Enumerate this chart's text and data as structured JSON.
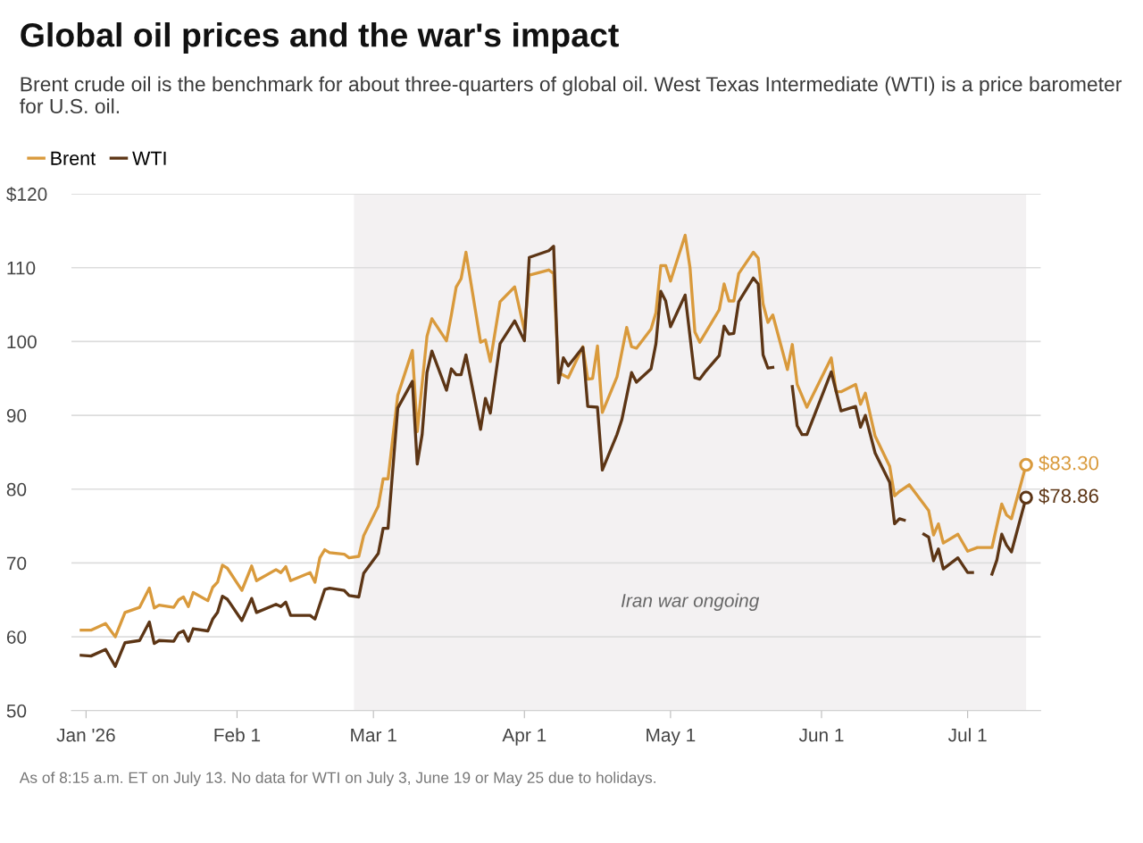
{
  "chart_data": {
    "type": "line",
    "title": "Global oil prices and the war's impact",
    "subtitle": "Brent crude oil is the benchmark for about three-quarters of global oil. West Texas Intermediate (WTI) is a price barometer for U.S. oil.",
    "annotations": [
      "As of 8:15 a.m. ET on July 13. No data for WTI on July 3, June 19 or May 25 due to holidays."
    ],
    "series": [
      {
        "name": "Brent",
        "color": "#d99a3c",
        "x": [
          "2025-12-31",
          "2026-01-02",
          "2026-01-05",
          "2026-01-07",
          "2026-01-09",
          "2026-01-12",
          "2026-01-14",
          "2026-01-15",
          "2026-01-16",
          "2026-01-19",
          "2026-01-20",
          "2026-01-21",
          "2026-01-22",
          "2026-01-23",
          "2026-01-26",
          "2026-01-27",
          "2026-01-28",
          "2026-01-29",
          "2026-01-30",
          "2026-02-02",
          "2026-02-04",
          "2026-02-05",
          "2026-02-09",
          "2026-02-10",
          "2026-02-11",
          "2026-02-12",
          "2026-02-16",
          "2026-02-17",
          "2026-02-18",
          "2026-02-19",
          "2026-02-20",
          "2026-02-23",
          "2026-02-24",
          "2026-02-26",
          "2026-02-27",
          "2026-03-02",
          "2026-03-03",
          "2026-03-04",
          "2026-03-06",
          "2026-03-09",
          "2026-03-10",
          "2026-03-12",
          "2026-03-13",
          "2026-03-16",
          "2026-03-17",
          "2026-03-18",
          "2026-03-19",
          "2026-03-20",
          "2026-03-23",
          "2026-03-24",
          "2026-03-25",
          "2026-03-27",
          "2026-03-30",
          "2026-04-01",
          "2026-04-02",
          "2026-04-06",
          "2026-04-07",
          "2026-04-08",
          "2026-04-10",
          "2026-04-13",
          "2026-04-14",
          "2026-04-15",
          "2026-04-16",
          "2026-04-17",
          "2026-04-20",
          "2026-04-22",
          "2026-04-23",
          "2026-04-24",
          "2026-04-27",
          "2026-04-28",
          "2026-04-29",
          "2026-04-30",
          "2026-05-01",
          "2026-05-04",
          "2026-05-05",
          "2026-05-06",
          "2026-05-07",
          "2026-05-11",
          "2026-05-12",
          "2026-05-13",
          "2026-05-14",
          "2026-05-15",
          "2026-05-18",
          "2026-05-19",
          "2026-05-20",
          "2026-05-21",
          "2026-05-22",
          "2026-05-25",
          "2026-05-26",
          "2026-05-27",
          "2026-05-29",
          "2026-06-03",
          "2026-06-04",
          "2026-06-05",
          "2026-06-08",
          "2026-06-09",
          "2026-06-10",
          "2026-06-12",
          "2026-06-15",
          "2026-06-16",
          "2026-06-17",
          "2026-06-19",
          "2026-06-23",
          "2026-06-24",
          "2026-06-25",
          "2026-06-26",
          "2026-06-29",
          "2026-07-01",
          "2026-07-03",
          "2026-07-06",
          "2026-07-08",
          "2026-07-09",
          "2026-07-10",
          "2026-07-13"
        ],
        "values": [
          60.9,
          60.9,
          61.8,
          60.0,
          63.3,
          64.0,
          66.6,
          63.9,
          64.3,
          64.0,
          65.0,
          65.4,
          64.1,
          66.0,
          64.9,
          66.7,
          67.4,
          69.7,
          69.3,
          66.3,
          69.6,
          67.6,
          69.1,
          68.7,
          69.5,
          67.6,
          68.7,
          67.4,
          70.7,
          71.8,
          71.4,
          71.2,
          70.7,
          70.9,
          73.7,
          77.7,
          81.4,
          81.4,
          92.7,
          98.8,
          87.8,
          100.7,
          103.1,
          100.1,
          103.6,
          107.4,
          108.5,
          112.1,
          99.9,
          100.2,
          97.3,
          105.4,
          107.4,
          101.5,
          109.0,
          109.7,
          109.2,
          95.8,
          95.1,
          99.3,
          94.9,
          95.0,
          99.4,
          90.4,
          95.2,
          101.9,
          99.3,
          99.1,
          101.7,
          103.9,
          110.3,
          110.3,
          108.2,
          114.4,
          110.0,
          101.3,
          99.9,
          104.3,
          107.8,
          105.5,
          105.5,
          109.2,
          112.1,
          111.3,
          105.1,
          102.6,
          103.6,
          96.2,
          99.6,
          94.2,
          91.1,
          97.8,
          93.2,
          93.2,
          94.2,
          91.5,
          93.0,
          87.2,
          83.1,
          79.1,
          79.7,
          80.6,
          77.1,
          73.8,
          75.3,
          72.7,
          73.9,
          71.6,
          72.1,
          72.1,
          78.0,
          76.5,
          76.0,
          83.3
        ],
        "value_labels": [
          null,
          null,
          null,
          null,
          null,
          null,
          null,
          null,
          null,
          null,
          null,
          null,
          null,
          null,
          null,
          null,
          null,
          null,
          null,
          null,
          null,
          null,
          null,
          null,
          null,
          null,
          null,
          null,
          null,
          null,
          null,
          null,
          null,
          null,
          null,
          null,
          null,
          null,
          null,
          null,
          null,
          null,
          null,
          null,
          null,
          null,
          null,
          null,
          null,
          null,
          null,
          null,
          null,
          null,
          null,
          null,
          null,
          null,
          null,
          null,
          null,
          null,
          null,
          null,
          null,
          null,
          null,
          null,
          null,
          null,
          null,
          null,
          null,
          null,
          null,
          null,
          null,
          null,
          null,
          null,
          null,
          null,
          null,
          null,
          null,
          null,
          null,
          null,
          null,
          null,
          null,
          null,
          null,
          null,
          null,
          null,
          null,
          null,
          null,
          null,
          null,
          null,
          null,
          null,
          null,
          null,
          null,
          null,
          null,
          null,
          null,
          null,
          null,
          "$83.30"
        ]
      },
      {
        "name": "WTI",
        "color": "#5c3515",
        "x": [
          "2025-12-31",
          "2026-01-02",
          "2026-01-05",
          "2026-01-07",
          "2026-01-09",
          "2026-01-12",
          "2026-01-14",
          "2026-01-15",
          "2026-01-16",
          "2026-01-19",
          "2026-01-20",
          "2026-01-21",
          "2026-01-22",
          "2026-01-23",
          "2026-01-26",
          "2026-01-27",
          "2026-01-28",
          "2026-01-29",
          "2026-01-30",
          "2026-02-02",
          "2026-02-04",
          "2026-02-05",
          "2026-02-09",
          "2026-02-10",
          "2026-02-11",
          "2026-02-12",
          "2026-02-16",
          "2026-02-17",
          "2026-02-19",
          "2026-02-20",
          "2026-02-23",
          "2026-02-24",
          "2026-02-26",
          "2026-02-27",
          "2026-03-02",
          "2026-03-03",
          "2026-03-04",
          "2026-03-06",
          "2026-03-09",
          "2026-03-10",
          "2026-03-11",
          "2026-03-12",
          "2026-03-13",
          "2026-03-16",
          "2026-03-17",
          "2026-03-18",
          "2026-03-19",
          "2026-03-20",
          "2026-03-23",
          "2026-03-24",
          "2026-03-25",
          "2026-03-27",
          "2026-03-30",
          "2026-04-01",
          "2026-04-02",
          "2026-04-06",
          "2026-04-07",
          "2026-04-08",
          "2026-04-09",
          "2026-04-10",
          "2026-04-13",
          "2026-04-14",
          "2026-04-16",
          "2026-04-17",
          "2026-04-20",
          "2026-04-21",
          "2026-04-23",
          "2026-04-24",
          "2026-04-27",
          "2026-04-28",
          "2026-04-29",
          "2026-04-30",
          "2026-05-01",
          "2026-05-04",
          "2026-05-06",
          "2026-05-07",
          "2026-05-08",
          "2026-05-11",
          "2026-05-12",
          "2026-05-13",
          "2026-05-14",
          "2026-05-15",
          "2026-05-18",
          "2026-05-19",
          "2026-05-20",
          "2026-05-21",
          "2026-05-22",
          "2026-05-25",
          "2026-05-26",
          "2026-05-27",
          "2026-05-28",
          "2026-05-29",
          "2026-06-03",
          "2026-06-05",
          "2026-06-08",
          "2026-06-09",
          "2026-06-10",
          "2026-06-12",
          "2026-06-15",
          "2026-06-16",
          "2026-06-17",
          "2026-06-18",
          "2026-06-19",
          "2026-06-22",
          "2026-06-23",
          "2026-06-24",
          "2026-06-25",
          "2026-06-26",
          "2026-06-29",
          "2026-07-01",
          "2026-07-02",
          "2026-07-03",
          "2026-07-06",
          "2026-07-07",
          "2026-07-08",
          "2026-07-09",
          "2026-07-10",
          "2026-07-13"
        ],
        "values": [
          57.5,
          57.4,
          58.3,
          56.0,
          59.2,
          59.5,
          62.0,
          59.1,
          59.5,
          59.4,
          60.5,
          60.8,
          59.4,
          61.1,
          60.8,
          62.4,
          63.3,
          65.5,
          65.1,
          62.2,
          65.2,
          63.3,
          64.4,
          64.1,
          64.7,
          62.9,
          62.9,
          62.4,
          66.4,
          66.6,
          66.3,
          65.6,
          65.4,
          68.6,
          71.3,
          74.7,
          74.7,
          91.0,
          94.6,
          83.4,
          87.4,
          95.8,
          98.7,
          93.4,
          96.3,
          95.5,
          95.5,
          98.2,
          88.1,
          92.3,
          90.3,
          99.7,
          102.8,
          100.1,
          111.4,
          112.3,
          112.9,
          94.4,
          97.8,
          96.7,
          99.2,
          91.2,
          91.1,
          82.6,
          87.4,
          89.4,
          95.8,
          94.5,
          96.3,
          99.7,
          106.8,
          105.5,
          102.0,
          106.3,
          95.1,
          94.9,
          95.8,
          98.1,
          102.1,
          101.0,
          101.1,
          105.4,
          108.6,
          107.8,
          98.2,
          96.4,
          96.5,
          null,
          93.9,
          88.6,
          87.4,
          87.4,
          95.9,
          90.6,
          91.2,
          88.4,
          90.0,
          84.9,
          80.9,
          75.3,
          76.0,
          75.8,
          null,
          73.9,
          73.5,
          70.3,
          71.9,
          69.2,
          70.7,
          68.7,
          68.7,
          null,
          68.5,
          70.4,
          73.9,
          72.4,
          71.5,
          78.86
        ],
        "value_labels": [
          null,
          null,
          null,
          null,
          null,
          null,
          null,
          null,
          null,
          null,
          null,
          null,
          null,
          null,
          null,
          null,
          null,
          null,
          null,
          null,
          null,
          null,
          null,
          null,
          null,
          null,
          null,
          null,
          null,
          null,
          null,
          null,
          null,
          null,
          null,
          null,
          null,
          null,
          null,
          null,
          null,
          null,
          null,
          null,
          null,
          null,
          null,
          null,
          null,
          null,
          null,
          null,
          null,
          null,
          null,
          null,
          null,
          null,
          null,
          null,
          null,
          null,
          null,
          null,
          null,
          null,
          null,
          null,
          null,
          null,
          null,
          null,
          null,
          null,
          null,
          null,
          null,
          null,
          null,
          null,
          null,
          null,
          null,
          null,
          null,
          null,
          null,
          null,
          null,
          null,
          null,
          null,
          null,
          null,
          null,
          null,
          null,
          null,
          null,
          null,
          null,
          null,
          null,
          null,
          null,
          null,
          null,
          null,
          null,
          null,
          null,
          null,
          null,
          null,
          null,
          null,
          null,
          "$78.86"
        ]
      }
    ],
    "xlim": [
      "2025-12-29",
      "2026-07-16"
    ],
    "xticks": [
      {
        "value": "2026-01-01",
        "label": "Jan '26"
      },
      {
        "value": "2026-02-01",
        "label": "Feb 1"
      },
      {
        "value": "2026-03-01",
        "label": "Mar 1"
      },
      {
        "value": "2026-04-01",
        "label": "Apr 1"
      },
      {
        "value": "2026-05-01",
        "label": "May 1"
      },
      {
        "value": "2026-06-01",
        "label": "Jun 1"
      },
      {
        "value": "2026-07-01",
        "label": "Jul 1"
      }
    ],
    "ylim": [
      50,
      120
    ],
    "yticks": [
      50,
      60,
      70,
      80,
      90,
      100,
      110,
      {
        "value": 120,
        "label": "$120"
      }
    ],
    "bands": [
      {
        "axis": "x",
        "from": "2026-02-25",
        "to": "2026-07-13",
        "label": "Iran war ongoing",
        "color": "#f3f1f2"
      }
    ],
    "grid": "y",
    "legend": "top left",
    "marker": "none",
    "line_style": "solid"
  }
}
